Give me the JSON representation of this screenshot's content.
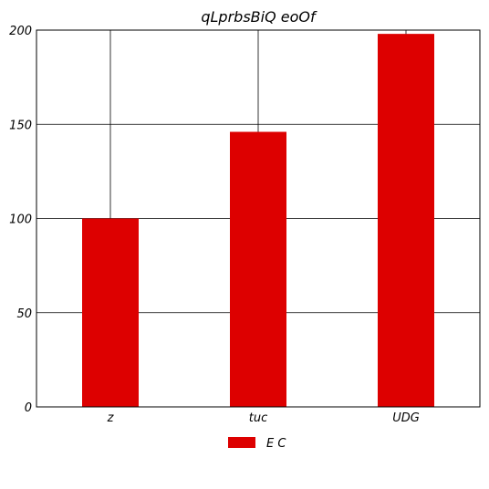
{
  "chart_data": {
    "type": "bar",
    "title": "qLprbsBiQ eoOf",
    "categories": [
      "z",
      "tuc",
      "UDG"
    ],
    "series": [
      {
        "name": "E C",
        "values": [
          100,
          146,
          198
        ],
        "color": "#dd0000"
      }
    ],
    "ylim": [
      0,
      200
    ],
    "yticks": [
      "0",
      "50",
      "100",
      "150",
      "200"
    ],
    "xlabel": "",
    "ylabel": "",
    "grid": true,
    "legend_position": "bottom-center"
  }
}
